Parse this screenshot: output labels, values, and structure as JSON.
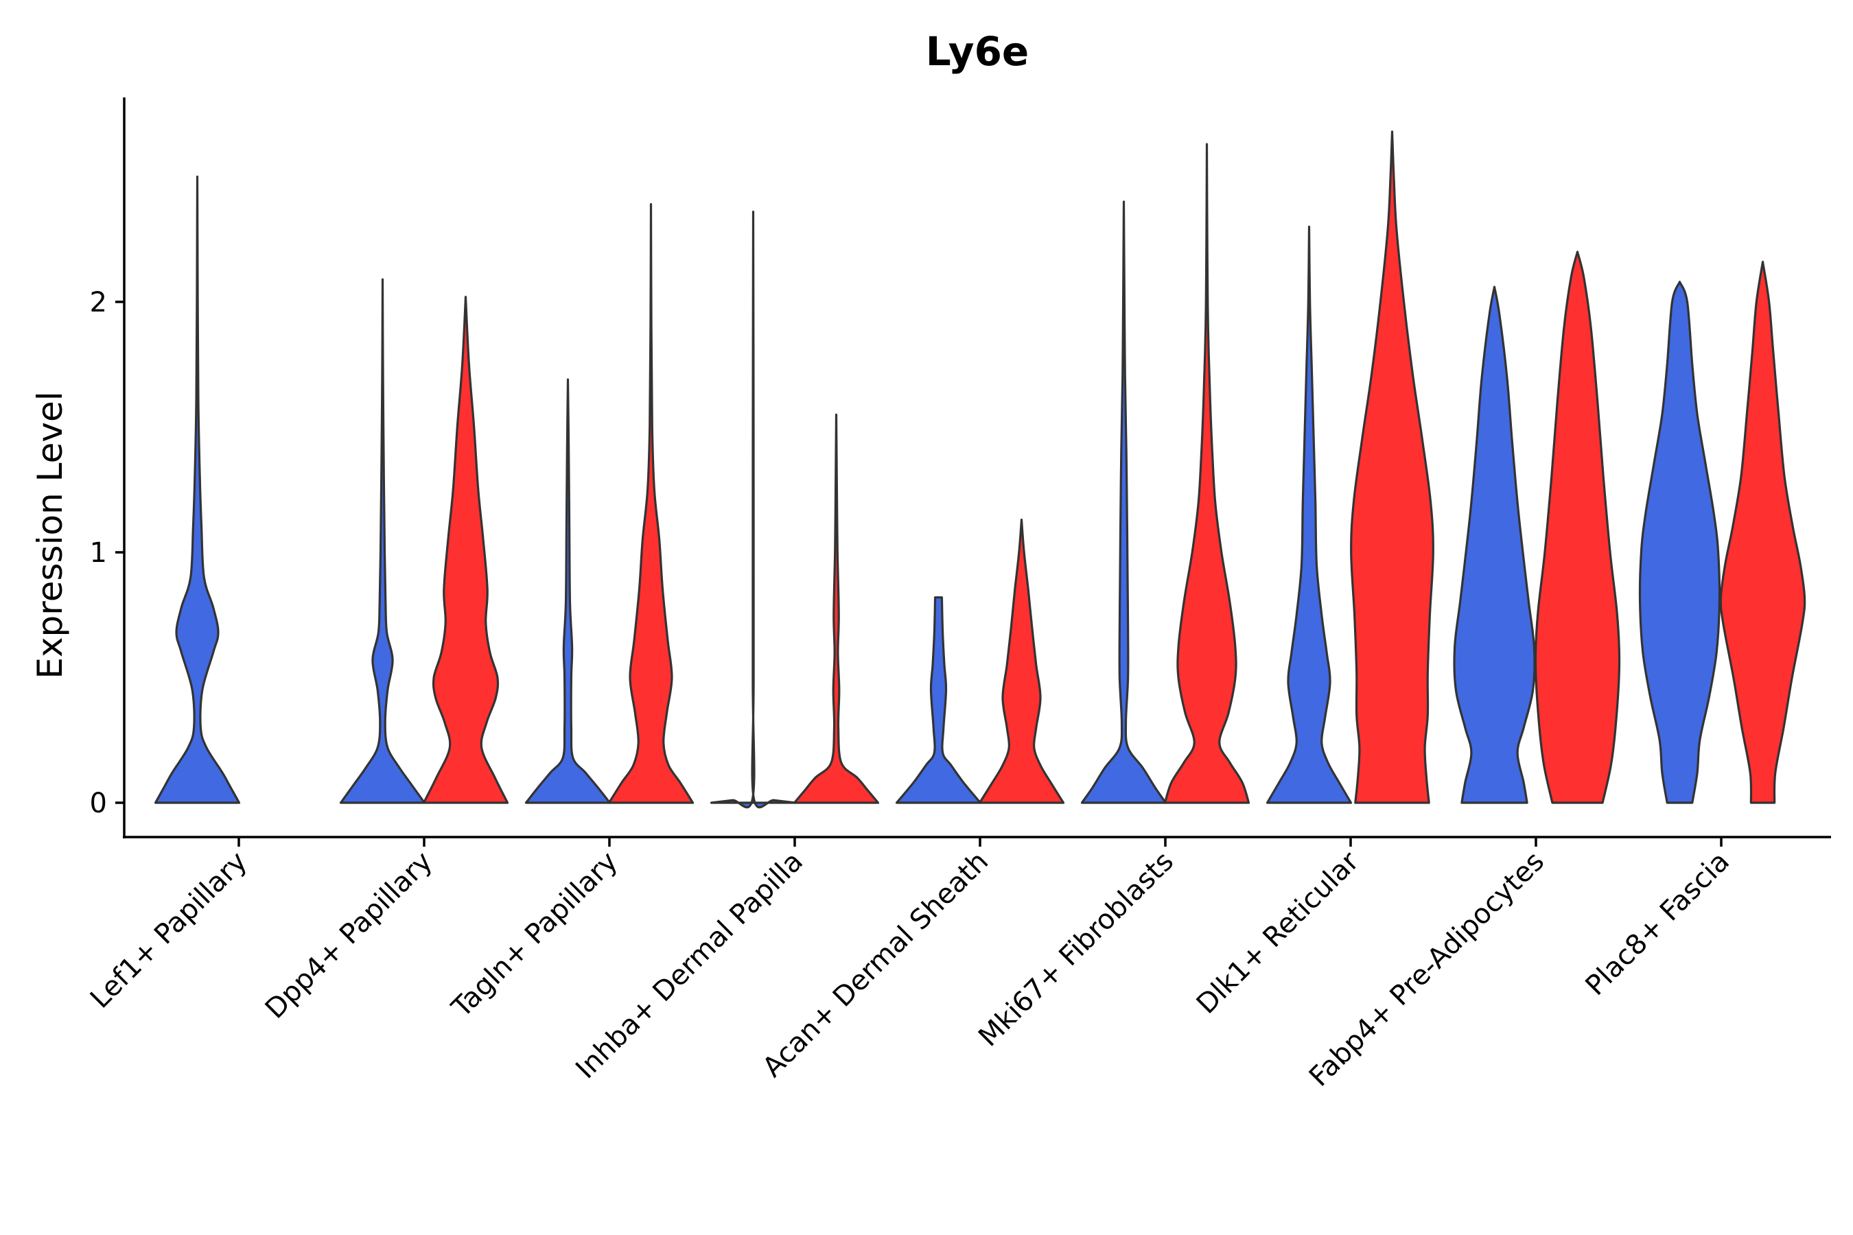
{
  "chart_data": {
    "type": "violin",
    "title": "Ly6e",
    "xlabel": "",
    "ylabel": "Expression Level",
    "ylim": [
      -0.13,
      2.8
    ],
    "yticks": [
      0,
      1,
      2
    ],
    "legend": "none",
    "grid": false,
    "colors": {
      "group1": "#4169E1",
      "group2": "#FF3030",
      "outline": "#333333"
    },
    "categories": [
      "Lef1+ Papillary",
      "Dpp4+ Papillary",
      "Tagln+ Papillary",
      "Inhba+ Dermal Papilla",
      "Acan+ Dermal Sheath",
      "Mki67+ Fibroblasts",
      "Dlk1+ Reticular",
      "Fabp4+ Pre-Adipocytes",
      "Plac8+ Fascia"
    ],
    "violins": [
      {
        "category": "Lef1+ Papillary",
        "group": "group1",
        "max": 2.5,
        "profile": [
          [
            0,
            1
          ],
          [
            0.06,
            0.8
          ],
          [
            0.12,
            0.6
          ],
          [
            0.22,
            0.22
          ],
          [
            0.3,
            0.08
          ],
          [
            0.45,
            0.12
          ],
          [
            0.6,
            0.38
          ],
          [
            0.68,
            0.5
          ],
          [
            0.78,
            0.38
          ],
          [
            0.9,
            0.16
          ],
          [
            1.1,
            0.1
          ],
          [
            1.3,
            0.06
          ],
          [
            1.6,
            0.025
          ],
          [
            2.0,
            0.01
          ],
          [
            2.5,
            0
          ]
        ]
      },
      {
        "category": "Dpp4+ Papillary",
        "group": "group1",
        "max": 2.09,
        "profile": [
          [
            0,
            1
          ],
          [
            0.07,
            0.7
          ],
          [
            0.14,
            0.4
          ],
          [
            0.22,
            0.12
          ],
          [
            0.32,
            0.06
          ],
          [
            0.45,
            0.12
          ],
          [
            0.57,
            0.24
          ],
          [
            0.68,
            0.1
          ],
          [
            0.8,
            0.07
          ],
          [
            1.0,
            0.05
          ],
          [
            1.3,
            0.03
          ],
          [
            1.7,
            0.01
          ],
          [
            2.09,
            0
          ]
        ]
      },
      {
        "category": "Dpp4+ Papillary",
        "group": "group2",
        "max": 2.02,
        "profile": [
          [
            0,
            1
          ],
          [
            0.1,
            0.7
          ],
          [
            0.22,
            0.38
          ],
          [
            0.32,
            0.5
          ],
          [
            0.42,
            0.72
          ],
          [
            0.5,
            0.76
          ],
          [
            0.6,
            0.58
          ],
          [
            0.72,
            0.48
          ],
          [
            0.85,
            0.52
          ],
          [
            1.05,
            0.42
          ],
          [
            1.25,
            0.3
          ],
          [
            1.5,
            0.2
          ],
          [
            1.75,
            0.08
          ],
          [
            2.02,
            0
          ]
        ]
      },
      {
        "category": "Tagln+ Papillary",
        "group": "group1",
        "max": 1.69,
        "profile": [
          [
            0,
            1
          ],
          [
            0.06,
            0.72
          ],
          [
            0.12,
            0.42
          ],
          [
            0.18,
            0.12
          ],
          [
            0.3,
            0.08
          ],
          [
            0.5,
            0.08
          ],
          [
            0.62,
            0.1
          ],
          [
            0.8,
            0.05
          ],
          [
            1.1,
            0.035
          ],
          [
            1.4,
            0.02
          ],
          [
            1.69,
            0
          ]
        ]
      },
      {
        "category": "Tagln+ Papillary",
        "group": "group2",
        "max": 2.39,
        "profile": [
          [
            0,
            1
          ],
          [
            0.08,
            0.7
          ],
          [
            0.15,
            0.42
          ],
          [
            0.24,
            0.3
          ],
          [
            0.36,
            0.38
          ],
          [
            0.5,
            0.5
          ],
          [
            0.65,
            0.4
          ],
          [
            0.85,
            0.28
          ],
          [
            1.05,
            0.2
          ],
          [
            1.25,
            0.08
          ],
          [
            1.5,
            0.03
          ],
          [
            1.9,
            0.01
          ],
          [
            2.39,
            0
          ]
        ]
      },
      {
        "category": "Inhba+ Dermal Papilla",
        "group": "group1",
        "max": 2.36,
        "profile": [
          [
            0,
            1
          ],
          [
            0.01,
            0.5
          ],
          [
            0.02,
            0.012
          ],
          [
            0.5,
            0.01
          ],
          [
            1.5,
            0.008
          ],
          [
            2.36,
            0
          ]
        ]
      },
      {
        "category": "Inhba+ Dermal Papilla",
        "group": "group2",
        "max": 1.55,
        "profile": [
          [
            0,
            1
          ],
          [
            0.05,
            0.75
          ],
          [
            0.1,
            0.5
          ],
          [
            0.16,
            0.12
          ],
          [
            0.3,
            0.05
          ],
          [
            0.45,
            0.07
          ],
          [
            0.6,
            0.04
          ],
          [
            0.75,
            0.06
          ],
          [
            1.0,
            0.03
          ],
          [
            1.25,
            0.015
          ],
          [
            1.55,
            0
          ]
        ]
      },
      {
        "category": "Acan+ Dermal Sheath",
        "group": "group1",
        "max": 0.82,
        "profile": [
          [
            0,
            1
          ],
          [
            0.08,
            0.6
          ],
          [
            0.15,
            0.3
          ],
          [
            0.2,
            0.1
          ],
          [
            0.3,
            0.12
          ],
          [
            0.45,
            0.18
          ],
          [
            0.55,
            0.14
          ],
          [
            0.68,
            0.1
          ],
          [
            0.82,
            0.08
          ]
        ]
      },
      {
        "category": "Acan+ Dermal Sheath",
        "group": "group2",
        "max": 1.13,
        "profile": [
          [
            0,
            1
          ],
          [
            0.08,
            0.7
          ],
          [
            0.15,
            0.45
          ],
          [
            0.22,
            0.3
          ],
          [
            0.3,
            0.35
          ],
          [
            0.42,
            0.45
          ],
          [
            0.55,
            0.35
          ],
          [
            0.7,
            0.25
          ],
          [
            0.85,
            0.16
          ],
          [
            1.0,
            0.06
          ],
          [
            1.13,
            0
          ]
        ]
      },
      {
        "category": "Mki67+ Fibroblasts",
        "group": "group1",
        "max": 2.4,
        "profile": [
          [
            0,
            1
          ],
          [
            0.06,
            0.75
          ],
          [
            0.14,
            0.45
          ],
          [
            0.22,
            0.1
          ],
          [
            0.32,
            0.05
          ],
          [
            0.5,
            0.1
          ],
          [
            0.7,
            0.1
          ],
          [
            0.9,
            0.09
          ],
          [
            1.1,
            0.08
          ],
          [
            1.4,
            0.06
          ],
          [
            1.7,
            0.03
          ],
          [
            2.0,
            0.015
          ],
          [
            2.4,
            0
          ]
        ]
      },
      {
        "category": "Mki67+ Fibroblasts",
        "group": "group2",
        "max": 2.63,
        "profile": [
          [
            0,
            1
          ],
          [
            0.08,
            0.85
          ],
          [
            0.16,
            0.55
          ],
          [
            0.24,
            0.3
          ],
          [
            0.36,
            0.52
          ],
          [
            0.5,
            0.68
          ],
          [
            0.62,
            0.68
          ],
          [
            0.8,
            0.55
          ],
          [
            1.0,
            0.35
          ],
          [
            1.2,
            0.2
          ],
          [
            1.4,
            0.13
          ],
          [
            1.6,
            0.08
          ],
          [
            1.9,
            0.03
          ],
          [
            2.2,
            0.012
          ],
          [
            2.63,
            0
          ]
        ]
      },
      {
        "category": "Dlk1+ Reticular",
        "group": "group1",
        "max": 2.3,
        "profile": [
          [
            0,
            1
          ],
          [
            0.08,
            0.72
          ],
          [
            0.16,
            0.45
          ],
          [
            0.24,
            0.3
          ],
          [
            0.34,
            0.38
          ],
          [
            0.48,
            0.5
          ],
          [
            0.6,
            0.42
          ],
          [
            0.75,
            0.3
          ],
          [
            0.95,
            0.18
          ],
          [
            1.2,
            0.15
          ],
          [
            1.45,
            0.11
          ],
          [
            1.75,
            0.06
          ],
          [
            2.0,
            0.02
          ],
          [
            2.3,
            0
          ]
        ]
      },
      {
        "category": "Dlk1+ Reticular",
        "group": "group2",
        "max": 2.68,
        "profile": [
          [
            0,
            0.88
          ],
          [
            0.1,
            0.82
          ],
          [
            0.22,
            0.78
          ],
          [
            0.35,
            0.85
          ],
          [
            0.52,
            0.85
          ],
          [
            0.75,
            0.9
          ],
          [
            1.0,
            0.98
          ],
          [
            1.2,
            0.92
          ],
          [
            1.45,
            0.72
          ],
          [
            1.7,
            0.5
          ],
          [
            2.0,
            0.28
          ],
          [
            2.3,
            0.1
          ],
          [
            2.5,
            0.04
          ],
          [
            2.68,
            0
          ]
        ]
      },
      {
        "category": "Fabp4+ Pre-Adipocytes",
        "group": "group1",
        "max": 2.06,
        "profile": [
          [
            0,
            0.78
          ],
          [
            0.08,
            0.7
          ],
          [
            0.2,
            0.55
          ],
          [
            0.3,
            0.7
          ],
          [
            0.45,
            0.92
          ],
          [
            0.62,
            0.95
          ],
          [
            0.8,
            0.82
          ],
          [
            1.0,
            0.68
          ],
          [
            1.2,
            0.55
          ],
          [
            1.45,
            0.42
          ],
          [
            1.7,
            0.3
          ],
          [
            1.95,
            0.12
          ],
          [
            2.06,
            0
          ]
        ]
      },
      {
        "category": "Fabp4+ Pre-Adipocytes",
        "group": "group2",
        "max": 2.2,
        "profile": [
          [
            0,
            0.6
          ],
          [
            0.15,
            0.8
          ],
          [
            0.32,
            0.92
          ],
          [
            0.55,
            1.0
          ],
          [
            0.75,
            0.95
          ],
          [
            1.0,
            0.78
          ],
          [
            1.3,
            0.62
          ],
          [
            1.6,
            0.48
          ],
          [
            1.9,
            0.32
          ],
          [
            2.1,
            0.15
          ],
          [
            2.2,
            0
          ]
        ]
      },
      {
        "category": "Plac8+ Fascia",
        "group": "group1",
        "max": 2.08,
        "profile": [
          [
            0,
            0.3
          ],
          [
            0.12,
            0.42
          ],
          [
            0.25,
            0.48
          ],
          [
            0.42,
            0.7
          ],
          [
            0.6,
            0.88
          ],
          [
            0.8,
            0.95
          ],
          [
            1.0,
            0.92
          ],
          [
            1.15,
            0.82
          ],
          [
            1.35,
            0.62
          ],
          [
            1.55,
            0.42
          ],
          [
            1.75,
            0.3
          ],
          [
            2.0,
            0.18
          ],
          [
            2.08,
            0
          ]
        ]
      },
      {
        "category": "Plac8+ Fascia",
        "group": "group2",
        "max": 2.16,
        "profile": [
          [
            0,
            0.28
          ],
          [
            0.12,
            0.3
          ],
          [
            0.3,
            0.5
          ],
          [
            0.5,
            0.7
          ],
          [
            0.72,
            0.95
          ],
          [
            0.82,
            1.0
          ],
          [
            0.95,
            0.9
          ],
          [
            1.1,
            0.72
          ],
          [
            1.3,
            0.52
          ],
          [
            1.55,
            0.38
          ],
          [
            1.8,
            0.25
          ],
          [
            2.0,
            0.15
          ],
          [
            2.16,
            0
          ]
        ]
      }
    ]
  }
}
